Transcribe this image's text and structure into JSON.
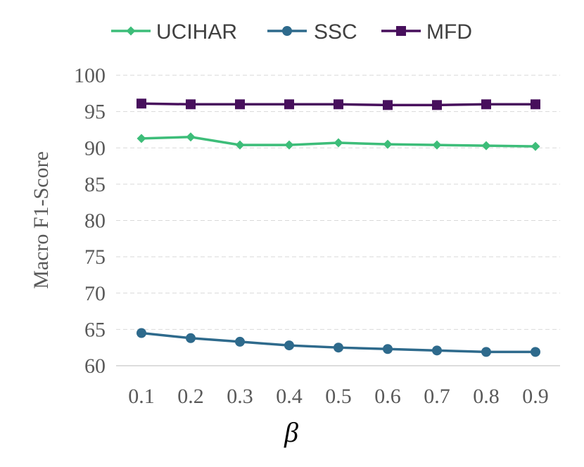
{
  "chart_data": {
    "type": "line",
    "title": "",
    "xlabel": "β",
    "ylabel": "Macro F1-Score",
    "categories": [
      "0.1",
      "0.2",
      "0.3",
      "0.4",
      "0.5",
      "0.6",
      "0.7",
      "0.8",
      "0.9"
    ],
    "ylim": [
      60,
      100
    ],
    "yticks": [
      60,
      65,
      70,
      75,
      80,
      85,
      90,
      95,
      100
    ],
    "grid": true,
    "legend_position": "top",
    "series": [
      {
        "name": "UCIHAR",
        "marker": "diamond",
        "color": "#3dbd79",
        "values": [
          91.3,
          91.5,
          90.4,
          90.4,
          90.7,
          90.5,
          90.4,
          90.3,
          90.2
        ]
      },
      {
        "name": "SSC",
        "marker": "circle",
        "color": "#2e6a8c",
        "values": [
          64.5,
          63.8,
          63.3,
          62.8,
          62.5,
          62.3,
          62.1,
          61.9,
          61.9
        ]
      },
      {
        "name": "MFD",
        "marker": "square",
        "color": "#470f5c",
        "values": [
          96.1,
          96.0,
          96.0,
          96.0,
          96.0,
          95.9,
          95.9,
          96.0,
          96.0
        ]
      }
    ]
  }
}
